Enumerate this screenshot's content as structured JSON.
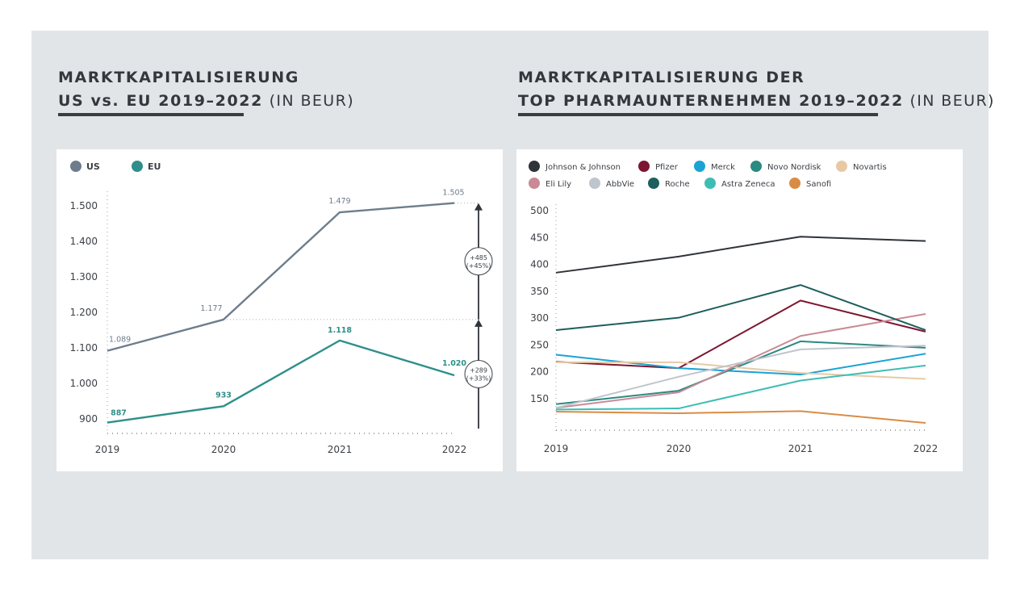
{
  "left_title": {
    "line1": "MARKTKAPITALISIERUNG",
    "line2": "US vs. EU 2019–2022",
    "unit": "(IN BEUR)"
  },
  "right_title": {
    "line1": "MARKTKAPITALISIERUNG DER",
    "line2": "TOP PHARMAUNTERNEHMEN 2019–2022",
    "unit": "(IN BEUR)"
  },
  "colors": {
    "background": "#e1e5e8",
    "us": "#6e7d8c",
    "eu": "#2e8f8a",
    "axis": "#3b3f44"
  },
  "chart_data": [
    {
      "type": "line",
      "categories": [
        "2019",
        "2020",
        "2021",
        "2022"
      ],
      "series": [
        {
          "name": "US",
          "color": "#6e7d8c",
          "values": [
            1089,
            1177,
            1479,
            1505
          ],
          "labels": [
            "1.089",
            "1.177",
            "1.479",
            "1.505"
          ]
        },
        {
          "name": "EU",
          "color": "#2e8f8a",
          "values": [
            887,
            933,
            1118,
            1020
          ],
          "labels": [
            "887",
            "933",
            "1.118",
            "1.020"
          ]
        }
      ],
      "y_ticks": [
        900,
        1000,
        1100,
        1200,
        1300,
        1400,
        1500
      ],
      "y_tick_labels": [
        "900",
        "1.000",
        "1.100",
        "1.200",
        "1.300",
        "1.400",
        "1.500"
      ],
      "ylim": [
        870,
        1520
      ],
      "legend": "top-left",
      "annotations": [
        {
          "from": 1177,
          "to": 1505,
          "label_line1": "+485",
          "label_line2": "(+45%)"
        },
        {
          "from": 870,
          "to": 1177,
          "label_line1": "+289",
          "label_line2": "(+33%)"
        }
      ]
    },
    {
      "type": "line",
      "categories": [
        "2019",
        "2020",
        "2021",
        "2022"
      ],
      "y_ticks": [
        150,
        200,
        250,
        300,
        350,
        400,
        450,
        500
      ],
      "ylim": [
        100,
        500
      ],
      "legend": "top",
      "series": [
        {
          "name": "Johnson & Johnson",
          "color": "#2f3439",
          "values": [
            383,
            413,
            450,
            442
          ]
        },
        {
          "name": "Pfizer",
          "color": "#7d1530",
          "values": [
            217,
            205,
            331,
            273
          ]
        },
        {
          "name": "Merck",
          "color": "#1aa3d4",
          "values": [
            230,
            205,
            193,
            232
          ]
        },
        {
          "name": "Novo Nordisk",
          "color": "#2b8a82",
          "values": [
            138,
            163,
            255,
            243
          ]
        },
        {
          "name": "Novartis",
          "color": "#e8c9a6",
          "values": [
            216,
            216,
            196,
            185
          ]
        },
        {
          "name": "Eli Lily",
          "color": "#c98a96",
          "values": [
            131,
            160,
            265,
            306
          ]
        },
        {
          "name": "AbbVie",
          "color": "#bfc5cd",
          "values": [
            131,
            189,
            240,
            247
          ]
        },
        {
          "name": "Roche",
          "color": "#1d5f5c",
          "values": [
            276,
            299,
            360,
            276
          ]
        },
        {
          "name": "Astra Zeneca",
          "color": "#3dbdb4",
          "values": [
            128,
            130,
            182,
            210
          ]
        },
        {
          "name": "Sanofi",
          "color": "#d98c46",
          "values": [
            124,
            121,
            125,
            103
          ]
        }
      ]
    }
  ]
}
